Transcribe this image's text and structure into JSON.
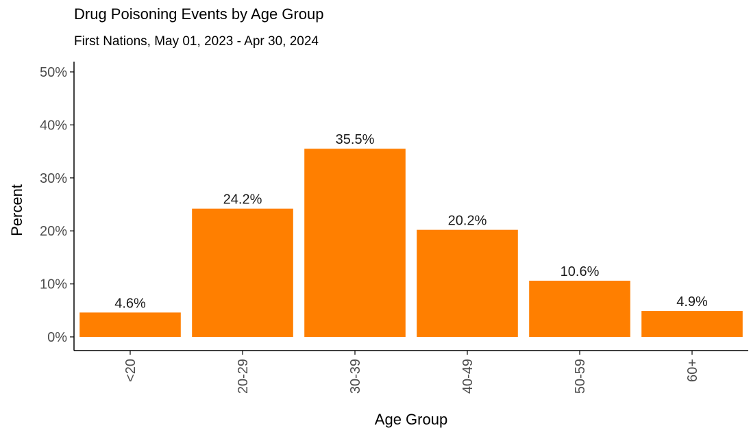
{
  "chart_data": {
    "type": "bar",
    "title": "Drug Poisoning Events by Age Group",
    "subtitle": "First Nations, May 01, 2023 - Apr 30, 2024",
    "xlabel": "Age Group",
    "ylabel": "Percent",
    "categories": [
      "<20",
      "20-29",
      "30-39",
      "40-49",
      "50-59",
      "60+"
    ],
    "values": [
      4.6,
      24.2,
      35.5,
      20.2,
      10.6,
      4.9
    ],
    "data_labels": [
      "4.6%",
      "24.2%",
      "35.5%",
      "20.2%",
      "10.6%",
      "4.9%"
    ],
    "ylim": [
      0,
      50
    ],
    "yticks": [
      0,
      10,
      20,
      30,
      40,
      50
    ],
    "ytick_labels": [
      "0%",
      "10%",
      "20%",
      "30%",
      "40%",
      "50%"
    ],
    "bar_color": "#ff7f00",
    "grid": false,
    "legend": "none"
  }
}
